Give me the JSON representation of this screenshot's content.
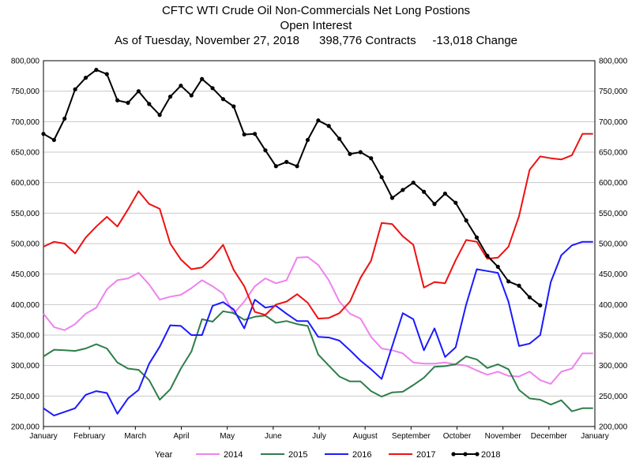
{
  "chart_data": {
    "type": "line",
    "title_lines": [
      "CFTC WTI Crude Oil Non-Commercials Net Long Postions",
      "Open Interest",
      "As of Tuesday, November 27, 2018      398,776 Contracts     -13,018 Change"
    ],
    "ylim": [
      200000,
      800000
    ],
    "y_ticks": [
      "200,000",
      "250,000",
      "300,000",
      "350,000",
      "400,000",
      "450,000",
      "500,000",
      "550,000",
      "600,000",
      "650,000",
      "700,000",
      "750,000",
      "800,000"
    ],
    "y_tick_values": [
      200000,
      250000,
      300000,
      350000,
      400000,
      450000,
      500000,
      550000,
      600000,
      650000,
      700000,
      750000,
      800000
    ],
    "x_range": [
      0,
      12
    ],
    "x_ticks": [
      "January",
      "February",
      "March",
      "April",
      "May",
      "June",
      "July",
      "August",
      "September",
      "October",
      "November",
      "December",
      "January"
    ],
    "legend_title": "Year",
    "legend_position": "bottom",
    "series": [
      {
        "name": "2014",
        "color": "#ee82ee",
        "markers": false,
        "x": [
          0.0,
          0.23,
          0.46,
          0.69,
          0.92,
          1.15,
          1.38,
          1.61,
          1.84,
          2.07,
          2.3,
          2.53,
          2.76,
          2.99,
          3.22,
          3.45,
          3.68,
          3.91,
          4.14,
          4.37,
          4.6,
          4.83,
          5.06,
          5.29,
          5.52,
          5.75,
          5.98,
          6.21,
          6.44,
          6.67,
          6.9,
          7.13,
          7.36,
          7.59,
          7.82,
          8.05,
          8.28,
          8.51,
          8.74,
          8.97,
          9.2,
          9.43,
          9.66,
          9.89,
          10.12,
          10.35,
          10.58,
          10.81,
          11.04,
          11.27,
          11.5,
          11.73,
          11.96
        ],
        "y": [
          385000,
          363000,
          358000,
          368000,
          385000,
          395000,
          425000,
          440000,
          443000,
          452000,
          433000,
          408000,
          413000,
          416000,
          427000,
          440000,
          430000,
          418000,
          385000,
          405000,
          430000,
          443000,
          435000,
          440000,
          477000,
          478000,
          465000,
          440000,
          405000,
          385000,
          377000,
          347000,
          328000,
          325000,
          320000,
          305000,
          303000,
          303000,
          305000,
          302000,
          300000,
          292000,
          285000,
          290000,
          283000,
          282000,
          290000,
          276000,
          270000,
          290000,
          295000,
          320000,
          320000
        ]
      },
      {
        "name": "2015",
        "color": "#2e7d4a",
        "markers": false,
        "x": [
          0.0,
          0.23,
          0.46,
          0.69,
          0.92,
          1.15,
          1.38,
          1.61,
          1.84,
          2.07,
          2.3,
          2.53,
          2.76,
          2.99,
          3.22,
          3.45,
          3.68,
          3.91,
          4.14,
          4.37,
          4.6,
          4.83,
          5.06,
          5.29,
          5.52,
          5.75,
          5.98,
          6.21,
          6.44,
          6.67,
          6.9,
          7.13,
          7.36,
          7.59,
          7.82,
          8.05,
          8.28,
          8.51,
          8.74,
          8.97,
          9.2,
          9.43,
          9.66,
          9.89,
          10.12,
          10.35,
          10.58,
          10.81,
          11.04,
          11.27,
          11.5,
          11.73,
          11.96
        ],
        "y": [
          315000,
          326000,
          325000,
          324000,
          328000,
          335000,
          328000,
          305000,
          295000,
          293000,
          276000,
          244000,
          261000,
          295000,
          323000,
          376000,
          372000,
          389000,
          386000,
          375000,
          380000,
          382000,
          370000,
          373000,
          368000,
          365000,
          318000,
          300000,
          282000,
          274000,
          274000,
          258000,
          249000,
          256000,
          257000,
          268000,
          280000,
          298000,
          299000,
          302000,
          315000,
          310000,
          296000,
          302000,
          294000,
          260000,
          246000,
          244000,
          236000,
          243000,
          225000,
          230000,
          230000
        ]
      },
      {
        "name": "2016",
        "color": "#1a1aff",
        "markers": false,
        "x": [
          0.0,
          0.23,
          0.46,
          0.69,
          0.92,
          1.15,
          1.38,
          1.61,
          1.84,
          2.07,
          2.3,
          2.53,
          2.76,
          2.99,
          3.22,
          3.45,
          3.68,
          3.91,
          4.14,
          4.37,
          4.6,
          4.83,
          5.06,
          5.29,
          5.52,
          5.75,
          5.98,
          6.21,
          6.44,
          6.67,
          6.9,
          7.13,
          7.36,
          7.59,
          7.82,
          8.05,
          8.28,
          8.51,
          8.74,
          8.97,
          9.2,
          9.43,
          9.66,
          9.89,
          10.12,
          10.35,
          10.58,
          10.81,
          11.04,
          11.27,
          11.5,
          11.73,
          11.96
        ],
        "y": [
          230000,
          218000,
          224000,
          230000,
          252000,
          258000,
          255000,
          221000,
          246000,
          260000,
          303000,
          331000,
          366000,
          365000,
          350000,
          350000,
          398000,
          404000,
          392000,
          361000,
          408000,
          395000,
          398000,
          385000,
          373000,
          373000,
          347000,
          346000,
          341000,
          325000,
          308000,
          294000,
          278000,
          332000,
          386000,
          376000,
          325000,
          361000,
          314000,
          330000,
          400000,
          458000,
          455000,
          452000,
          405000,
          332000,
          336000,
          350000,
          437000,
          481000,
          497000,
          503000,
          503000
        ]
      },
      {
        "name": "2017",
        "color": "#ee1111",
        "markers": false,
        "x": [
          0.0,
          0.23,
          0.46,
          0.69,
          0.92,
          1.15,
          1.38,
          1.61,
          1.84,
          2.07,
          2.3,
          2.53,
          2.76,
          2.99,
          3.22,
          3.45,
          3.68,
          3.91,
          4.14,
          4.37,
          4.6,
          4.83,
          5.06,
          5.29,
          5.52,
          5.75,
          5.98,
          6.21,
          6.44,
          6.67,
          6.9,
          7.13,
          7.36,
          7.59,
          7.82,
          8.05,
          8.28,
          8.51,
          8.74,
          8.97,
          9.2,
          9.43,
          9.66,
          9.89,
          10.12,
          10.35,
          10.58,
          10.81,
          11.04,
          11.27,
          11.5,
          11.73,
          11.96
        ],
        "y": [
          495000,
          503000,
          500000,
          484000,
          510000,
          528000,
          544000,
          528000,
          556000,
          586000,
          565000,
          557000,
          500000,
          474000,
          458000,
          461000,
          477000,
          498000,
          457000,
          430000,
          388000,
          383000,
          400000,
          405000,
          417000,
          403000,
          377000,
          378000,
          386000,
          405000,
          444000,
          472000,
          534000,
          532000,
          512000,
          498000,
          428000,
          437000,
          435000,
          473000,
          506000,
          503000,
          475000,
          477000,
          495000,
          545000,
          621000,
          643000,
          640000,
          638000,
          645000,
          680000,
          680000
        ]
      },
      {
        "name": "2018",
        "color": "#000000",
        "markers": true,
        "x": [
          0.0,
          0.23,
          0.46,
          0.69,
          0.92,
          1.15,
          1.38,
          1.61,
          1.84,
          2.07,
          2.3,
          2.53,
          2.76,
          2.99,
          3.22,
          3.45,
          3.68,
          3.91,
          4.14,
          4.37,
          4.6,
          4.83,
          5.06,
          5.29,
          5.52,
          5.75,
          5.98,
          6.21,
          6.44,
          6.67,
          6.9,
          7.13,
          7.36,
          7.59,
          7.82,
          8.05,
          8.28,
          8.51,
          8.74,
          8.97,
          9.2,
          9.43,
          9.66,
          9.89,
          10.12,
          10.35,
          10.58,
          10.81
        ],
        "y": [
          680000,
          670000,
          705000,
          753000,
          772000,
          785000,
          778000,
          735000,
          731000,
          750000,
          729000,
          711000,
          741000,
          759000,
          743000,
          770000,
          755000,
          737000,
          725000,
          679000,
          680000,
          653000,
          627000,
          634000,
          627000,
          670000,
          702000,
          693000,
          672000,
          647000,
          650000,
          640000,
          609000,
          575000,
          588000,
          600000,
          585000,
          565000,
          582000,
          567000,
          538000,
          510000,
          480000,
          462000,
          438000,
          431000,
          412000,
          398776
        ]
      }
    ]
  }
}
